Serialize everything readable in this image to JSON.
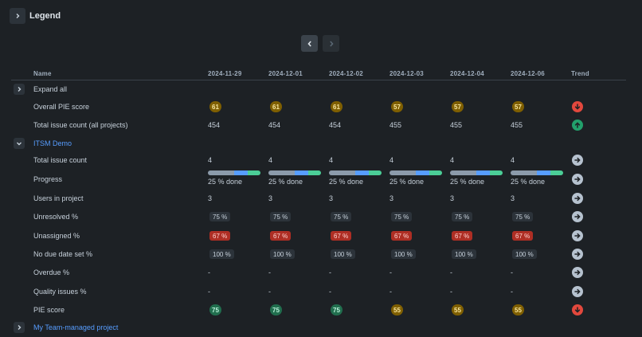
{
  "legend": {
    "title": "Legend"
  },
  "columns": {
    "name": "Name",
    "dates": [
      "2024-11-29",
      "2024-12-01",
      "2024-12-02",
      "2024-12-03",
      "2024-12-04",
      "2024-12-06"
    ],
    "trend": "Trend"
  },
  "colors": {
    "background": "#1d2125",
    "link": "#579dff",
    "pill_yellow_bg": "#7f5f01",
    "pill_yellow_fg": "#f8e6a0",
    "pill_green_bg": "#216e4e",
    "pill_green_fg": "#baf3db",
    "pill_red_bg": "#ae2e24",
    "pill_red_fg": "#ffd5d2",
    "pill_neutral_bg": "#2c333a",
    "trend_up": "#22a06b",
    "trend_down": "#e2483d",
    "trend_neutral": "#b6c2cf",
    "progress_todo": "#8c9bab",
    "progress_inprogress": "#579dff",
    "progress_done": "#4bce97"
  },
  "rows": {
    "expand_all": {
      "label": "Expand all"
    },
    "overall_pie": {
      "label": "Overall PIE score",
      "values": [
        "61",
        "61",
        "61",
        "57",
        "57",
        "57"
      ],
      "styles": [
        "yellow",
        "yellow",
        "yellow",
        "yellow",
        "yellow",
        "yellow"
      ],
      "trend": "down"
    },
    "total_issue_all": {
      "label": "Total issue count (all projects)",
      "values": [
        "454",
        "454",
        "454",
        "455",
        "455",
        "455"
      ],
      "trend": "up"
    },
    "itsm_demo": {
      "label": "ITSM Demo"
    },
    "total_issue": {
      "label": "Total issue count",
      "values": [
        "4",
        "4",
        "4",
        "4",
        "4",
        "4"
      ],
      "trend": "neutral"
    },
    "progress": {
      "label": "Progress",
      "values": [
        "25 % done",
        "25 % done",
        "25 % done",
        "25 % done",
        "25 % done",
        "25 % done"
      ],
      "segments": {
        "todo": 0.5,
        "inprogress": 0.25,
        "done": 0.25
      },
      "trend": "neutral"
    },
    "users": {
      "label": "Users in project",
      "values": [
        "3",
        "3",
        "3",
        "3",
        "3",
        "3"
      ],
      "trend": "neutral"
    },
    "unresolved": {
      "label": "Unresolved %",
      "values": [
        "75 %",
        "75 %",
        "75 %",
        "75 %",
        "75 %",
        "75 %"
      ],
      "trend": "neutral"
    },
    "unassigned": {
      "label": "Unassigned %",
      "values": [
        "67 %",
        "67 %",
        "67 %",
        "67 %",
        "67 %",
        "67 %"
      ],
      "trend": "neutral"
    },
    "no_due": {
      "label": "No due date set %",
      "values": [
        "100 %",
        "100 %",
        "100 %",
        "100 %",
        "100 %",
        "100 %"
      ],
      "trend": "neutral"
    },
    "overdue": {
      "label": "Overdue %",
      "values": [
        "-",
        "-",
        "-",
        "-",
        "-",
        "-"
      ],
      "trend": "neutral"
    },
    "quality": {
      "label": "Quality issues %",
      "values": [
        "-",
        "-",
        "-",
        "-",
        "-",
        "-"
      ],
      "trend": "neutral"
    },
    "pie": {
      "label": "PIE score",
      "values": [
        "75",
        "75",
        "75",
        "55",
        "55",
        "55"
      ],
      "styles": [
        "green",
        "green",
        "green",
        "yellow",
        "yellow",
        "yellow"
      ],
      "trend": "down"
    },
    "team_managed": {
      "label": "My Team-managed project"
    }
  },
  "icons": {
    "legend_toggle": "chevron-right-icon",
    "pager_prev": "chevron-left-icon",
    "pager_next": "chevron-right-icon",
    "row_collapsed": "chevron-right-icon",
    "row_expanded": "chevron-down-icon",
    "trend_down": "arrow-down-circle-icon",
    "trend_up": "arrow-up-circle-icon",
    "trend_neutral": "arrow-right-circle-icon"
  }
}
